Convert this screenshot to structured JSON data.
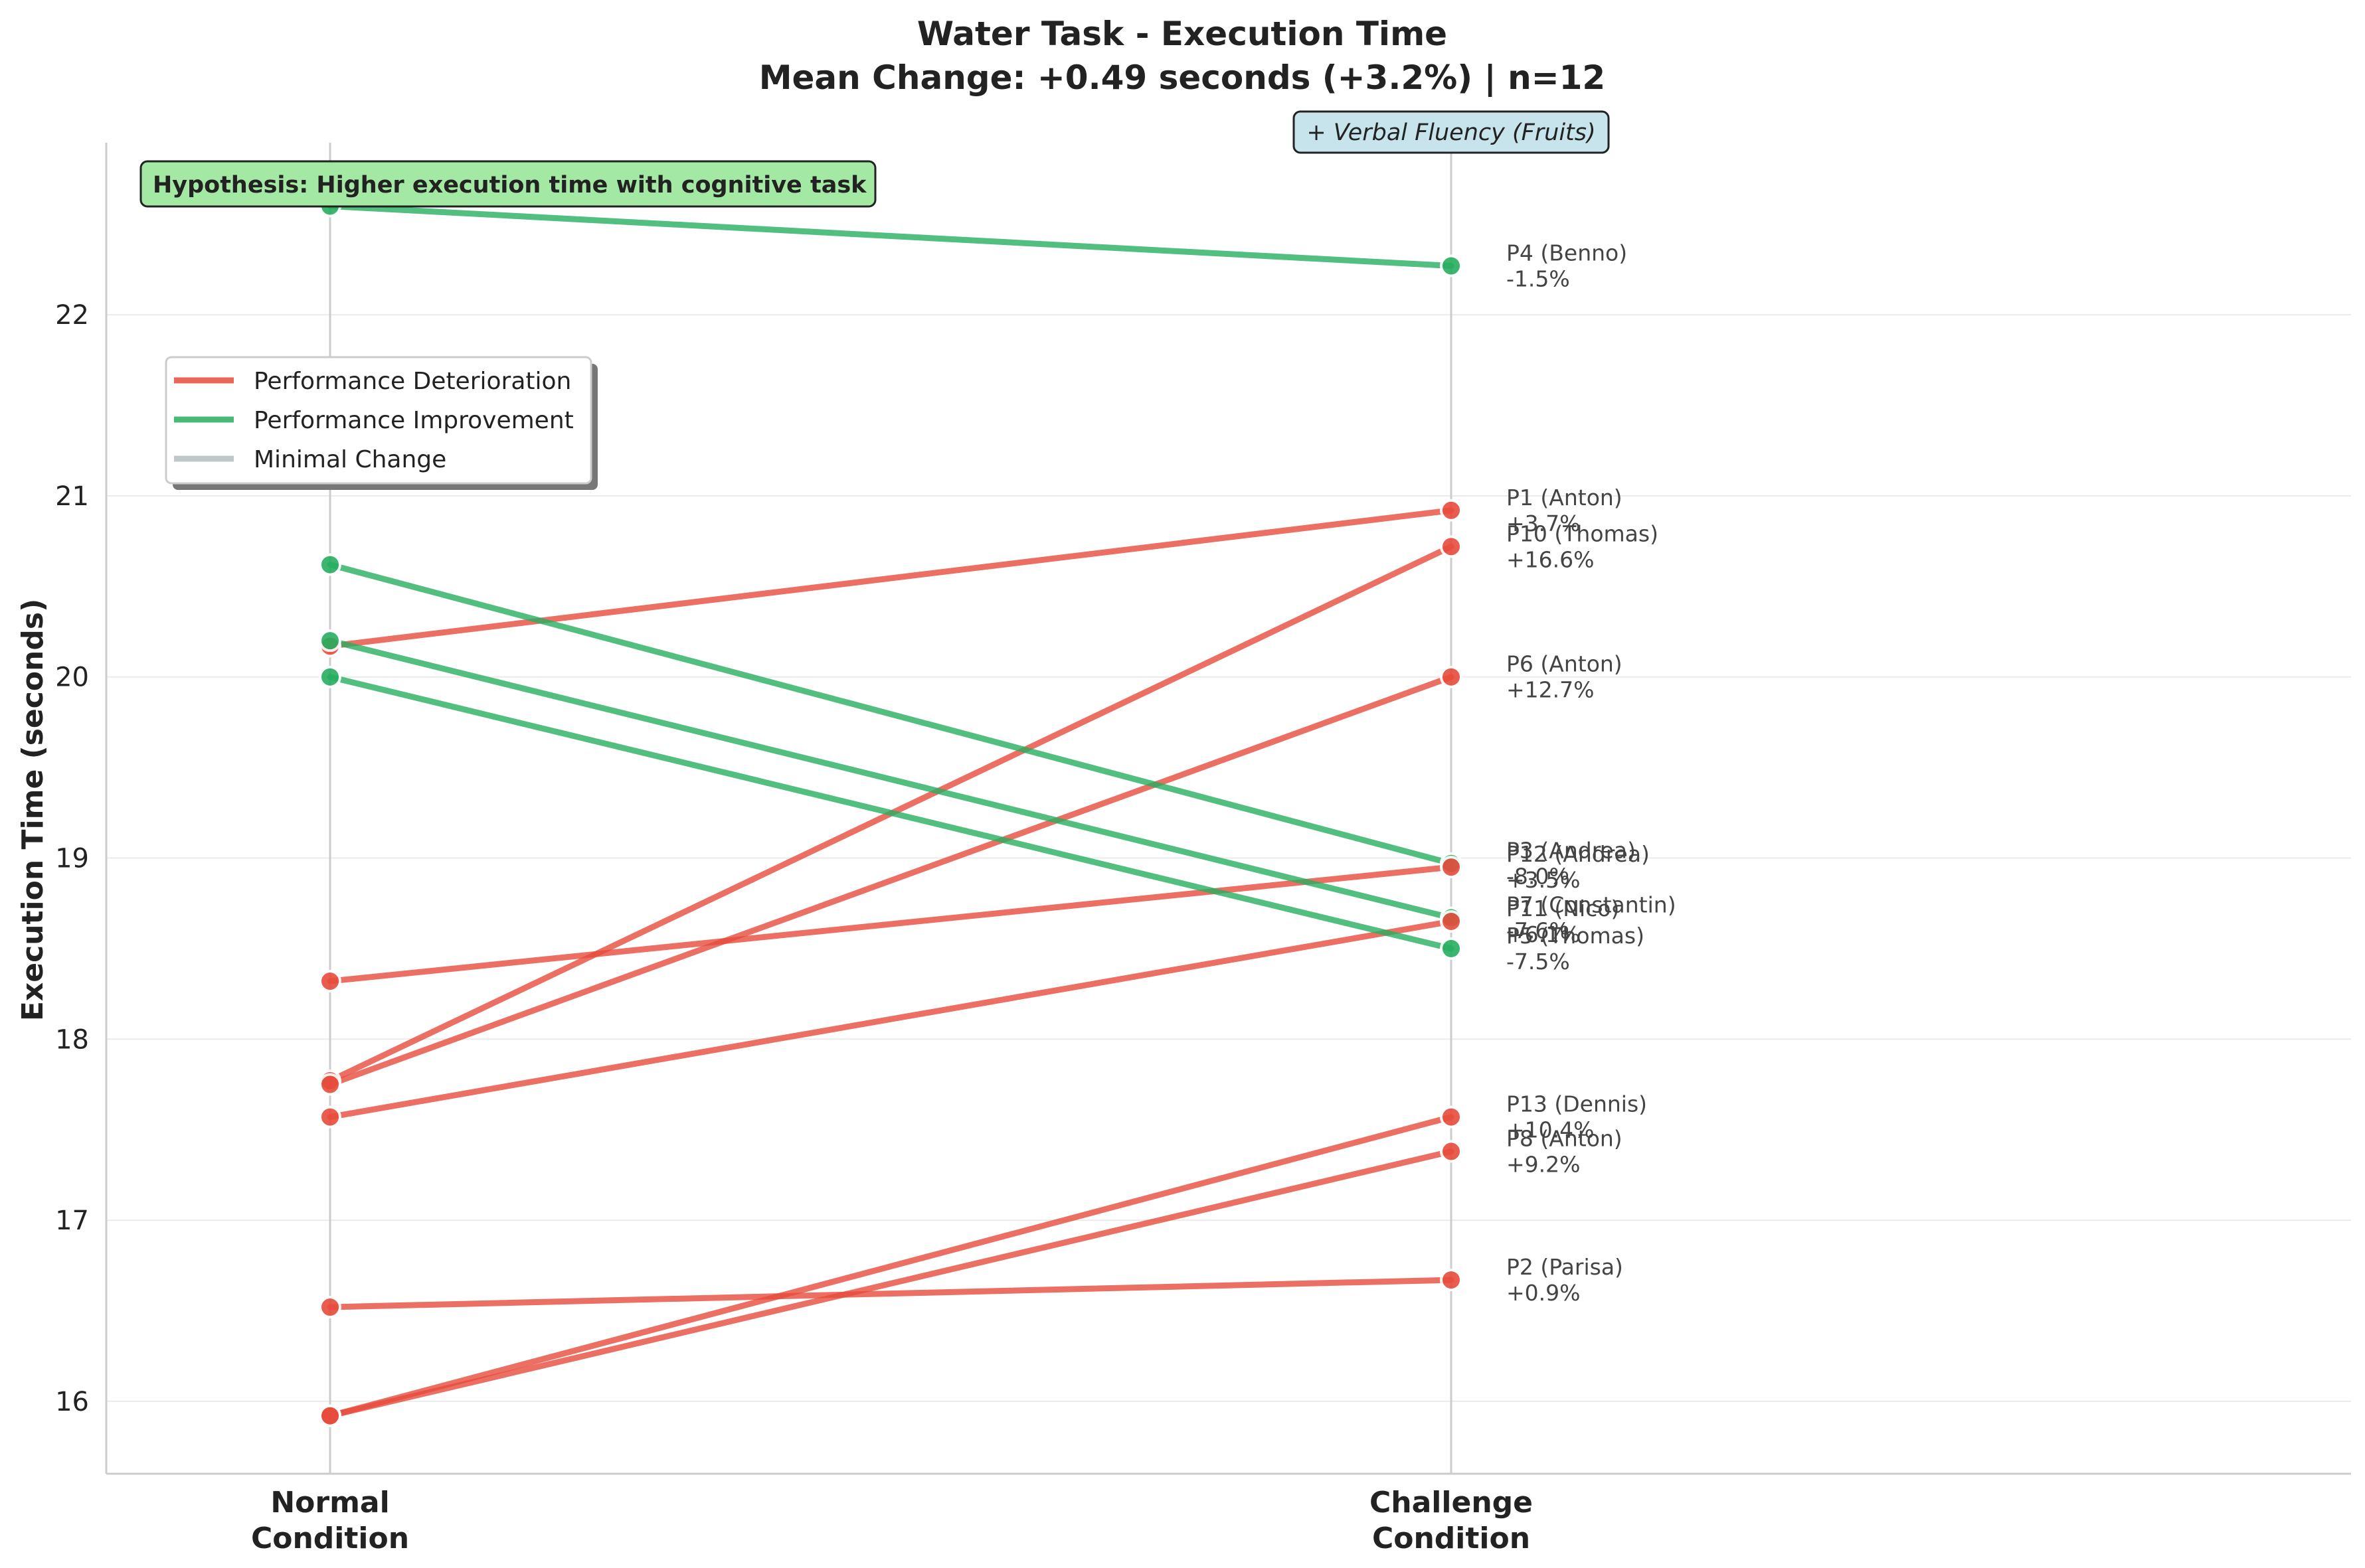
{
  "chart_data": {
    "type": "line",
    "title": "Water Task - Execution Time",
    "subtitle": "Mean Change: +0.49 seconds (+3.2%) | n=12",
    "xlabel": "",
    "ylabel": "Execution Time (seconds)",
    "categories": [
      "Normal\nCondition",
      "Challenge\nCondition"
    ],
    "ylim": [
      15.6,
      22.95
    ],
    "yticks": [
      16,
      17,
      18,
      19,
      20,
      21,
      22
    ],
    "grid": true,
    "legend": {
      "placement": "upper-left",
      "entries": [
        {
          "label": "Performance Deterioration",
          "color": "#e74c3c"
        },
        {
          "label": "Performance Improvement",
          "color": "#27ae60"
        },
        {
          "label": "Minimal Change",
          "color": "#95a5a6"
        }
      ]
    },
    "annotations": {
      "hypothesis": "Hypothesis: Higher execution time with cognitive task",
      "challenge_note": "+ Verbal Fluency (Fruits)"
    },
    "colors": {
      "deterioration": "#e74c3c",
      "improvement": "#27ae60",
      "minimal": "#95a5a6",
      "hypothesis_bg": "#a3e8a3",
      "note_bg": "#c7e4ec"
    },
    "series": [
      {
        "name": "P4 (Benno)",
        "change": "-1.5%",
        "trend": "improvement",
        "values": [
          22.6,
          22.27
        ]
      },
      {
        "name": "P1 (Anton)",
        "change": "+3.7%",
        "trend": "deterioration",
        "values": [
          20.17,
          20.92
        ]
      },
      {
        "name": "P10 (Thomas)",
        "change": "+16.6%",
        "trend": "deterioration",
        "values": [
          17.77,
          20.72
        ]
      },
      {
        "name": "P6 (Anton)",
        "change": "+12.7%",
        "trend": "deterioration",
        "values": [
          17.75,
          20.0
        ]
      },
      {
        "name": "P3 (Andrea)",
        "change": "-8.0%",
        "trend": "improvement",
        "values": [
          20.62,
          18.97
        ]
      },
      {
        "name": "P12 (Andrea)",
        "change": "+3.5%",
        "trend": "deterioration",
        "values": [
          18.32,
          18.95
        ]
      },
      {
        "name": "P7 (Constantin)",
        "change": "-7.6%",
        "trend": "improvement",
        "values": [
          20.2,
          18.67
        ]
      },
      {
        "name": "P11 (Nico)",
        "change": "+6.1%",
        "trend": "deterioration",
        "values": [
          17.57,
          18.65
        ]
      },
      {
        "name": "P5 (Thomas)",
        "change": "-7.5%",
        "trend": "improvement",
        "values": [
          20.0,
          18.5
        ]
      },
      {
        "name": "P13 (Dennis)",
        "change": "+10.4%",
        "trend": "deterioration",
        "values": [
          15.92,
          17.57
        ]
      },
      {
        "name": "P8 (Anton)",
        "change": "+9.2%",
        "trend": "deterioration",
        "values": [
          15.92,
          17.38
        ]
      },
      {
        "name": "P2 (Parisa)",
        "change": "+0.9%",
        "trend": "deterioration",
        "values": [
          16.52,
          16.67
        ]
      }
    ]
  }
}
